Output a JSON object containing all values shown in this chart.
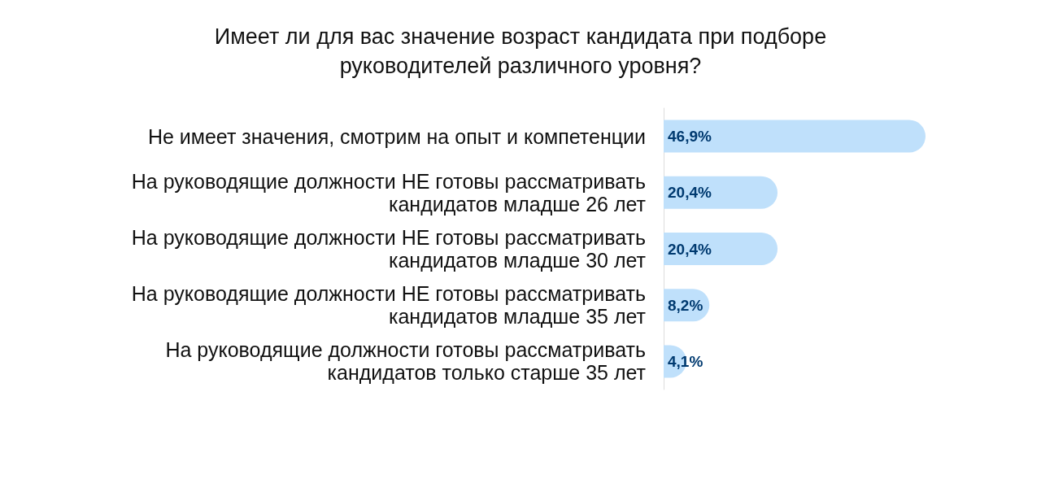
{
  "chart_data": {
    "type": "bar",
    "orientation": "horizontal",
    "title": "Имеет ли для вас значение возраст кандидата при подборе\nруководителей различного уровня?",
    "categories": [
      "Не имеет значения, смотрим на опыт и компетенции",
      "На руководящие должности НЕ готовы рассматривать\nкандидатов младше 26 лет",
      "На руководящие должности НЕ готовы рассматривать\nкандидатов младше 30 лет",
      "На руководящие должности НЕ готовы рассматривать\nкандидатов младше 35 лет",
      "На руководящие должности готовы рассматривать\nкандидатов только старше 35 лет"
    ],
    "values": [
      46.9,
      20.4,
      20.4,
      8.2,
      4.1
    ],
    "value_labels": [
      "46,9%",
      "20,4%",
      "20,4%",
      "8,2%",
      "4,1%"
    ],
    "color": "#bfe0fb"
  }
}
